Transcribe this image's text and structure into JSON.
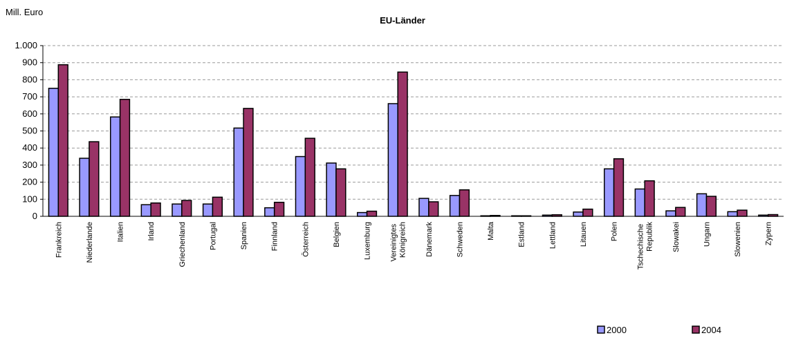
{
  "chart_data": {
    "type": "bar",
    "title": "EU-Länder",
    "y_label": "Mill. Euro",
    "categories": [
      "Frankreich",
      "Niederlande",
      "Italien",
      "Irland",
      "Griechenland",
      "Portugal",
      "Spanien",
      "Finnland",
      "Österreich",
      "Belgien",
      "Luxemburg",
      "Vereinigtes Königreich",
      "Dänemark",
      "Schweden",
      "Malta",
      "Estland",
      "Lettland",
      "Litauen",
      "Polen",
      "Tschechische Republik",
      "Slowakei",
      "Ungarn",
      "Slowenien",
      "Zypern"
    ],
    "series": [
      {
        "name": "2000",
        "color": "#9999ff",
        "values": [
          750,
          340,
          582,
          68,
          72,
          72,
          517,
          50,
          350,
          312,
          22,
          660,
          105,
          122,
          3,
          3,
          7,
          25,
          278,
          160,
          32,
          132,
          27,
          7
        ]
      },
      {
        "name": "2004",
        "color": "#993366",
        "values": [
          888,
          437,
          685,
          78,
          93,
          112,
          632,
          82,
          457,
          278,
          30,
          845,
          85,
          155,
          5,
          3,
          9,
          42,
          337,
          208,
          52,
          117,
          36,
          10
        ]
      }
    ],
    "ylim": [
      0,
      1000
    ],
    "yticks": [
      0,
      100,
      200,
      300,
      400,
      500,
      600,
      700,
      800,
      900,
      {
        "value": 1000,
        "label": "1.000"
      }
    ],
    "grid": true,
    "legend": "bottom-right"
  }
}
